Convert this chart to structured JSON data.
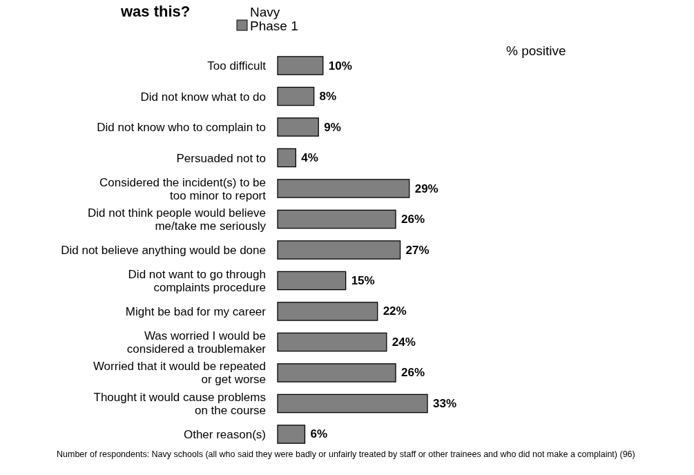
{
  "chart_data": {
    "type": "bar",
    "orientation": "horizontal",
    "title": "was this?",
    "categories": [
      "Too difficult",
      "Did not know what to do",
      "Did not know who to complain to",
      "Persuaded not to",
      "Considered the incident(s) to be\ntoo minor to report",
      "Did not think people would believe\nme/take me seriously",
      "Did not believe anything would be done",
      "Did not want to go through\ncomplaints procedure",
      "Might be bad for my career",
      "Was worried I would be\nconsidered a troublemaker",
      "Worried that it would be repeated\nor get worse",
      "Thought it would cause problems\non the course",
      "Other reason(s)"
    ],
    "series": [
      {
        "name": "Navy\nPhase 1",
        "color": "#808080",
        "values": [
          10,
          8,
          9,
          4,
          29,
          26,
          27,
          15,
          22,
          24,
          26,
          33,
          6
        ],
        "value_labels": [
          "10%",
          "8%",
          "9%",
          "4%",
          "29%",
          "26%",
          "27%",
          "15%",
          "22%",
          "24%",
          "26%",
          "33%",
          "6%"
        ]
      }
    ],
    "legend": "top",
    "annotations": [
      "% positive",
      "Number of respondents: Navy schools (all who said they were badly or unfairly treated by staff or other trainees and who did not make a complaint) (96)"
    ]
  }
}
